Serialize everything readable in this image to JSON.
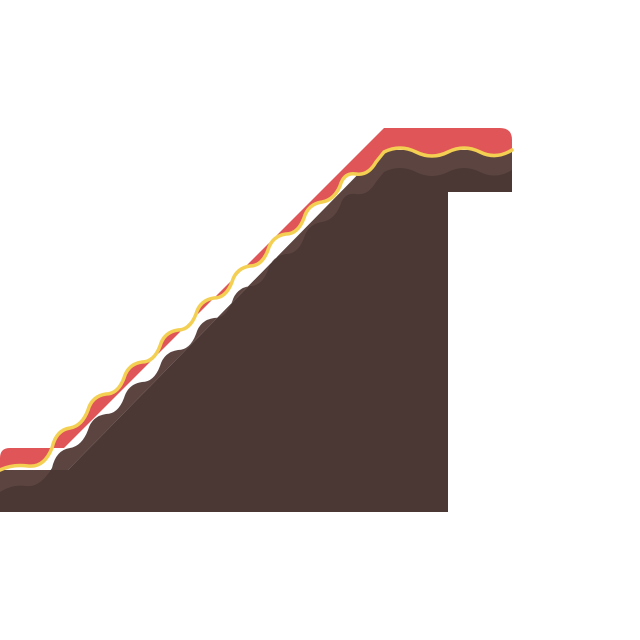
{
  "scene": {
    "type": "platformer-terrain-tile",
    "description_tiles": [
      "ledge-left",
      "slope-up-right",
      "ledge-right",
      "overhang-step"
    ],
    "colors": {
      "background": "#ffffff",
      "dirt": "#4b3734",
      "dirt_shade": "#5c4541",
      "grass": "#e05557",
      "grass_highlight": "#ee6b6c",
      "trim": "#f3cf52"
    }
  }
}
